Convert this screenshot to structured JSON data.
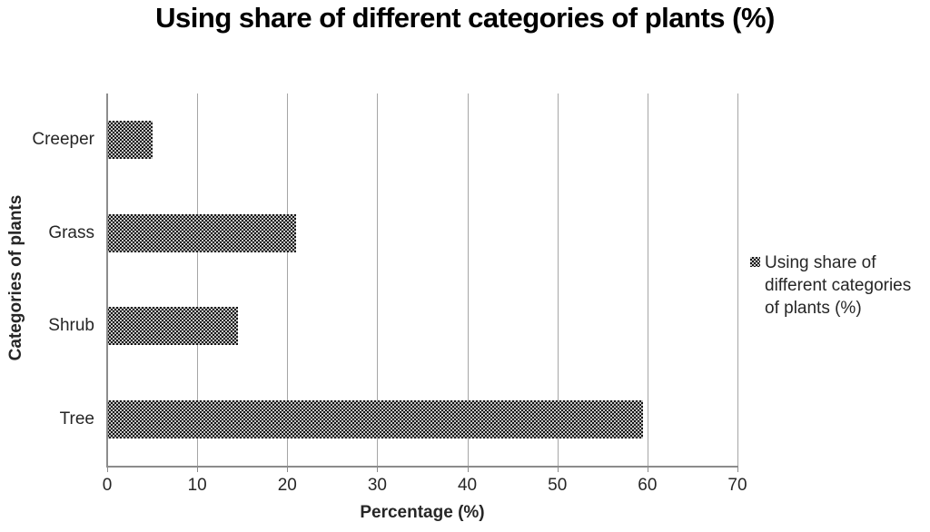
{
  "chart_data": {
    "type": "bar",
    "orientation": "horizontal",
    "title": "Using share of different categories of plants (%)",
    "categories": [
      "Creeper",
      "Grass",
      "Shrub",
      "Tree"
    ],
    "values": [
      5,
      21,
      14.5,
      59.5
    ],
    "xlabel": "Percentage (%)",
    "ylabel": "Categories of plants",
    "xlim": [
      0,
      70
    ],
    "xticks": [
      0,
      10,
      20,
      30,
      40,
      50,
      60,
      70
    ],
    "grid": true,
    "legend": {
      "position": "right",
      "label": "Using share of different categories of plants (%)"
    },
    "bar_style": "dotted-grid-pattern"
  },
  "colors": {
    "bar_fill": "#141414",
    "bar_dot": "#f5f5f5",
    "gridline": "#a6a6a6",
    "axis": "#8c8c8c",
    "text": "#262626",
    "title": "#000000"
  }
}
